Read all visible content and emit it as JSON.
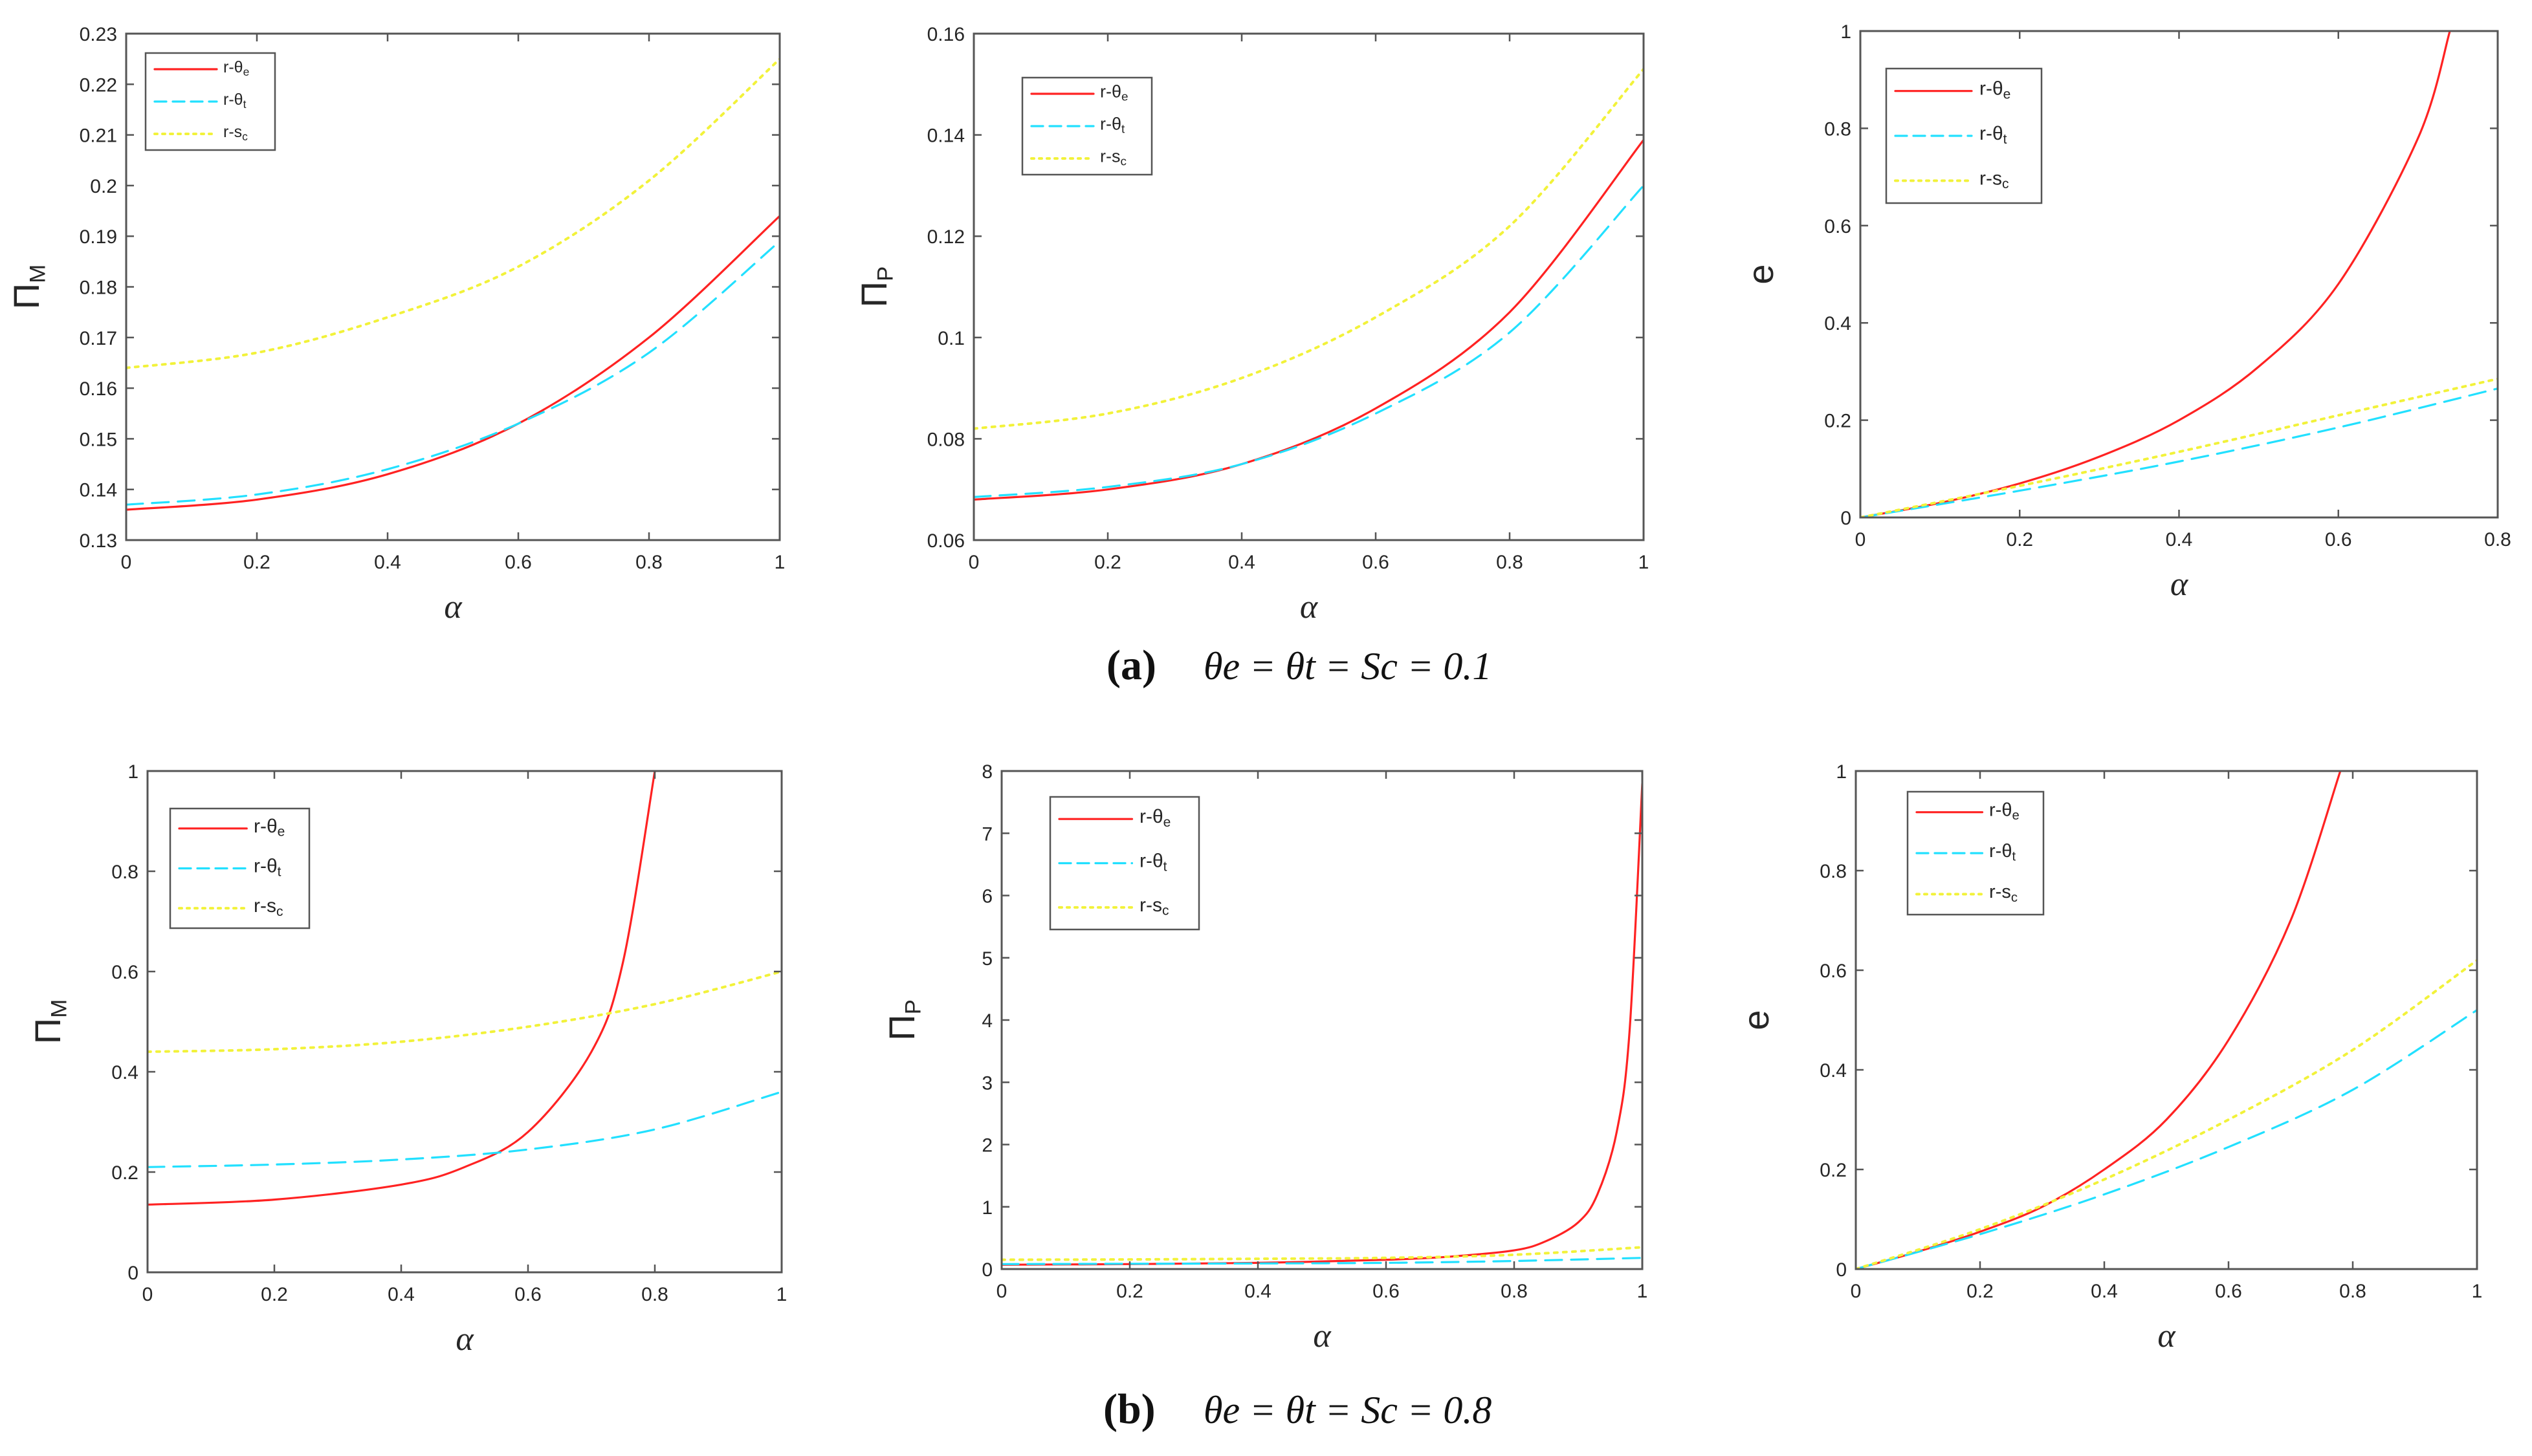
{
  "colors": {
    "r_theta_e": "#ff2222",
    "r_theta_t": "#22e0ff",
    "r_s_c": "#f2f23a",
    "axis": "#555555",
    "text": "#262626"
  },
  "captions": {
    "a": {
      "letter": "(a)",
      "equation": "θe = θt = Sc = 0.1"
    },
    "b": {
      "letter": "(b)",
      "equation": "θe = θt = Sc = 0.8"
    }
  },
  "chart_data": [
    {
      "id": "a1",
      "type": "line",
      "panel": "a",
      "title": "",
      "xlabel": "α",
      "ylabel": "ΠM",
      "xlim": [
        0,
        1
      ],
      "ylim": [
        0.13,
        0.23
      ],
      "xticks": [
        "0",
        "0.2",
        "0.4",
        "0.6",
        "0.8",
        "1"
      ],
      "yticks": [
        "0.13",
        "0.14",
        "0.15",
        "0.16",
        "0.17",
        "0.18",
        "0.19",
        "0.2",
        "0.21",
        "0.22",
        "0.23"
      ],
      "legend_position": "top-left",
      "series": [
        {
          "name": "r-θe",
          "style": "solid",
          "x": [
            0,
            0.2,
            0.4,
            0.6,
            0.8,
            1.0
          ],
          "values": [
            0.136,
            0.138,
            0.143,
            0.153,
            0.17,
            0.194
          ]
        },
        {
          "name": "r-θt",
          "style": "dashed",
          "x": [
            0,
            0.2,
            0.4,
            0.6,
            0.8,
            1.0
          ],
          "values": [
            0.137,
            0.139,
            0.144,
            0.153,
            0.167,
            0.189
          ]
        },
        {
          "name": "r-sc",
          "style": "dotted",
          "x": [
            0,
            0.2,
            0.4,
            0.6,
            0.8,
            1.0
          ],
          "values": [
            0.164,
            0.167,
            0.174,
            0.184,
            0.201,
            0.225
          ]
        }
      ]
    },
    {
      "id": "a2",
      "type": "line",
      "panel": "a",
      "title": "",
      "xlabel": "α",
      "ylabel": "ΠP",
      "xlim": [
        0,
        1
      ],
      "ylim": [
        0.06,
        0.16
      ],
      "xticks": [
        "0",
        "0.2",
        "0.4",
        "0.6",
        "0.8",
        "1"
      ],
      "yticks": [
        "0.06",
        "0.08",
        "0.1",
        "0.12",
        "0.14",
        "0.16"
      ],
      "legend_position": "top-left",
      "series": [
        {
          "name": "r-θe",
          "style": "solid",
          "x": [
            0,
            0.2,
            0.4,
            0.6,
            0.8,
            1.0
          ],
          "values": [
            0.068,
            0.07,
            0.075,
            0.086,
            0.105,
            0.139
          ]
        },
        {
          "name": "r-θt",
          "style": "dashed",
          "x": [
            0,
            0.2,
            0.4,
            0.6,
            0.8,
            1.0
          ],
          "values": [
            0.0685,
            0.0705,
            0.075,
            0.085,
            0.101,
            0.13
          ]
        },
        {
          "name": "r-sc",
          "style": "dotted",
          "x": [
            0,
            0.2,
            0.4,
            0.6,
            0.8,
            1.0
          ],
          "values": [
            0.082,
            0.085,
            0.092,
            0.104,
            0.122,
            0.153
          ]
        }
      ]
    },
    {
      "id": "a3",
      "type": "line",
      "panel": "a",
      "title": "",
      "xlabel": "α",
      "ylabel": "e",
      "xlim": [
        0,
        0.8
      ],
      "ylim": [
        0,
        1
      ],
      "xticks": [
        "0",
        "0.2",
        "0.4",
        "0.6",
        "0.8"
      ],
      "yticks": [
        "0",
        "0.2",
        "0.4",
        "0.6",
        "0.8",
        "1"
      ],
      "legend_position": "top-left",
      "series": [
        {
          "name": "r-θe",
          "style": "solid",
          "x": [
            0,
            0.1,
            0.2,
            0.3,
            0.4,
            0.5,
            0.6,
            0.7,
            0.74
          ],
          "values": [
            0,
            0.03,
            0.07,
            0.125,
            0.2,
            0.31,
            0.48,
            0.78,
            1.0
          ]
        },
        {
          "name": "r-θt",
          "style": "dashed",
          "x": [
            0,
            0.2,
            0.4,
            0.6,
            0.8
          ],
          "values": [
            0,
            0.055,
            0.115,
            0.185,
            0.265
          ]
        },
        {
          "name": "r-sc",
          "style": "dotted",
          "x": [
            0,
            0.2,
            0.4,
            0.6,
            0.8
          ],
          "values": [
            0,
            0.065,
            0.135,
            0.21,
            0.285
          ]
        }
      ]
    },
    {
      "id": "b1",
      "type": "line",
      "panel": "b",
      "title": "",
      "xlabel": "α",
      "ylabel": "ΠM",
      "xlim": [
        0,
        1
      ],
      "ylim": [
        0,
        1
      ],
      "xticks": [
        "0",
        "0.2",
        "0.4",
        "0.6",
        "0.8",
        "1"
      ],
      "yticks": [
        "0",
        "0.2",
        "0.4",
        "0.6",
        "0.8",
        "1"
      ],
      "legend_position": "top-left",
      "series": [
        {
          "name": "r-θe",
          "style": "solid",
          "x": [
            0,
            0.2,
            0.4,
            0.5,
            0.6,
            0.7,
            0.75,
            0.8
          ],
          "values": [
            0.135,
            0.145,
            0.175,
            0.21,
            0.28,
            0.44,
            0.62,
            1.0
          ]
        },
        {
          "name": "r-θt",
          "style": "dashed",
          "x": [
            0,
            0.2,
            0.4,
            0.6,
            0.8,
            1.0
          ],
          "values": [
            0.21,
            0.215,
            0.225,
            0.245,
            0.285,
            0.36
          ]
        },
        {
          "name": "r-sc",
          "style": "dotted",
          "x": [
            0,
            0.2,
            0.4,
            0.6,
            0.8,
            1.0
          ],
          "values": [
            0.44,
            0.445,
            0.46,
            0.49,
            0.535,
            0.6
          ]
        }
      ]
    },
    {
      "id": "b2",
      "type": "line",
      "panel": "b",
      "title": "",
      "xlabel": "α",
      "ylabel": "ΠP",
      "xlim": [
        0,
        1
      ],
      "ylim": [
        0,
        8
      ],
      "xticks": [
        "0",
        "0.2",
        "0.4",
        "0.6",
        "0.8",
        "1"
      ],
      "yticks": [
        "0",
        "1",
        "2",
        "3",
        "4",
        "5",
        "6",
        "7",
        "8"
      ],
      "legend_position": "top-left",
      "series": [
        {
          "name": "r-θe",
          "style": "solid",
          "x": [
            0,
            0.2,
            0.4,
            0.6,
            0.7,
            0.8,
            0.85,
            0.9,
            0.93,
            0.96,
            0.98,
            1.0
          ],
          "values": [
            0.07,
            0.08,
            0.1,
            0.15,
            0.2,
            0.3,
            0.45,
            0.75,
            1.2,
            2.2,
            3.8,
            7.8
          ]
        },
        {
          "name": "r-θt",
          "style": "dashed",
          "x": [
            0,
            0.2,
            0.4,
            0.6,
            0.8,
            1.0
          ],
          "values": [
            0.08,
            0.085,
            0.09,
            0.1,
            0.13,
            0.18
          ]
        },
        {
          "name": "r-sc",
          "style": "dotted",
          "x": [
            0,
            0.2,
            0.4,
            0.6,
            0.8,
            1.0
          ],
          "values": [
            0.15,
            0.155,
            0.165,
            0.18,
            0.23,
            0.35
          ]
        }
      ]
    },
    {
      "id": "b3",
      "type": "line",
      "panel": "b",
      "title": "",
      "xlabel": "α",
      "ylabel": "e",
      "xlim": [
        0,
        1
      ],
      "ylim": [
        0,
        1
      ],
      "xticks": [
        "0",
        "0.2",
        "0.4",
        "0.6",
        "0.8",
        "1"
      ],
      "yticks": [
        "0",
        "0.2",
        "0.4",
        "0.6",
        "0.8",
        "1"
      ],
      "legend_position": "top-left",
      "series": [
        {
          "name": "r-θe",
          "style": "solid",
          "x": [
            0,
            0.1,
            0.2,
            0.3,
            0.4,
            0.5,
            0.6,
            0.7,
            0.78
          ],
          "values": [
            0,
            0.035,
            0.075,
            0.125,
            0.2,
            0.3,
            0.46,
            0.7,
            1.0
          ]
        },
        {
          "name": "r-θt",
          "style": "dashed",
          "x": [
            0,
            0.2,
            0.4,
            0.6,
            0.8,
            1.0
          ],
          "values": [
            0,
            0.07,
            0.15,
            0.245,
            0.36,
            0.52
          ]
        },
        {
          "name": "r-sc",
          "style": "dotted",
          "x": [
            0,
            0.2,
            0.4,
            0.6,
            0.8,
            1.0
          ],
          "values": [
            0,
            0.08,
            0.18,
            0.3,
            0.44,
            0.62
          ]
        }
      ]
    }
  ]
}
